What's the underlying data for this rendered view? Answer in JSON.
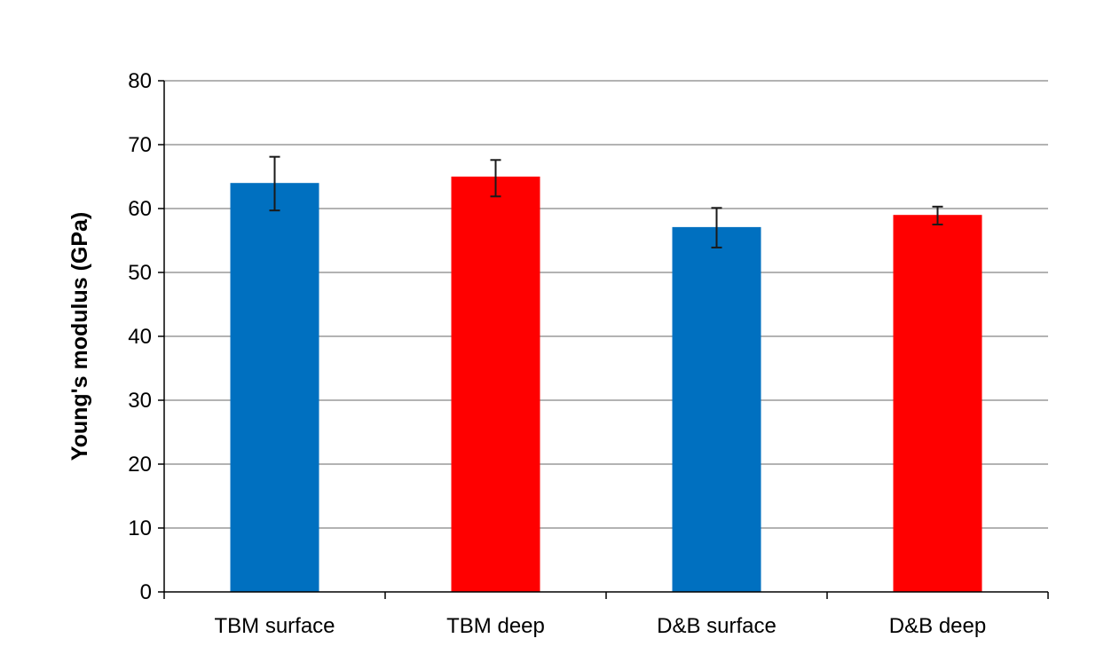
{
  "chart_data": {
    "type": "bar",
    "title": "",
    "xlabel": "",
    "ylabel": "Young's modulus (GPa)",
    "ylim": [
      0,
      80
    ],
    "yticks": [
      0,
      10,
      20,
      30,
      40,
      50,
      60,
      70,
      80
    ],
    "grid": true,
    "legend": "none",
    "categories": [
      "TBM surface",
      "TBM deep",
      "D&B surface",
      "D&B deep"
    ],
    "values": [
      64.0,
      65.0,
      57.1,
      59.0
    ],
    "error_low": [
      59.7,
      61.9,
      53.9,
      57.5
    ],
    "error_high": [
      68.1,
      67.6,
      60.1,
      60.3
    ],
    "colors": [
      "#0070c0",
      "#ff0000",
      "#0070c0",
      "#ff0000"
    ]
  }
}
